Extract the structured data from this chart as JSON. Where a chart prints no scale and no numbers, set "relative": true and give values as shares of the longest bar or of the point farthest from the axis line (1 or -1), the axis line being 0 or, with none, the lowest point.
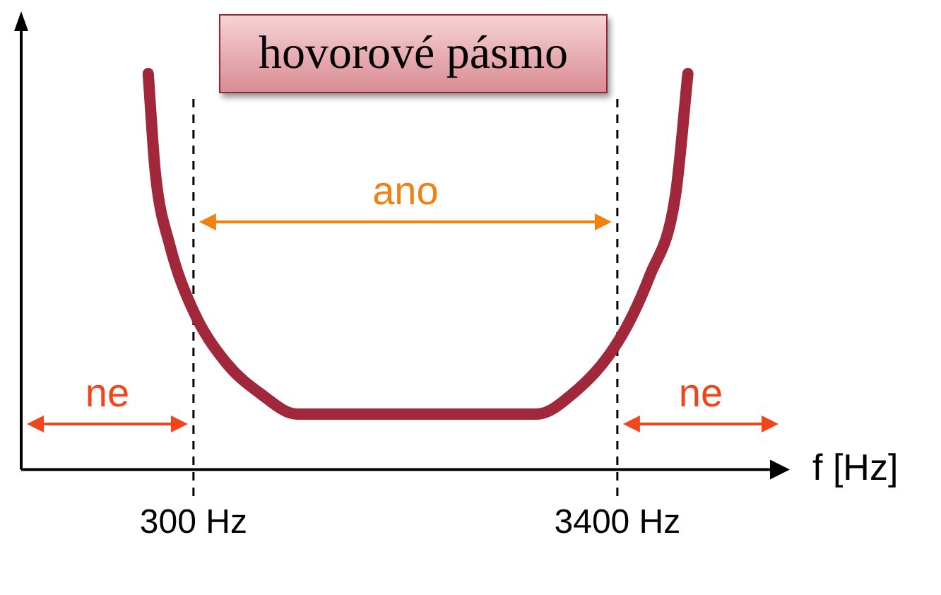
{
  "chart_data": {
    "type": "line",
    "title": "hovorové pásmo",
    "xlabel": "f [Hz]",
    "relative": true,
    "marker": "none",
    "line_style": "solid",
    "legend": false,
    "grid": false,
    "tick_labels": "x",
    "xlim": [
      -960,
      4620
    ],
    "xticks": [
      {
        "value": 300,
        "label": "300 Hz"
      },
      {
        "value": 3400,
        "label": "3400 Hz"
      }
    ],
    "x": [
      -31,
      21,
      124,
      300,
      538,
      796,
      1054,
      2811,
      3069,
      3400,
      3638,
      3824,
      3916
    ],
    "series": [
      {
        "color": "#a0283a",
        "values": [
          1.0,
          0.75,
          0.57,
          0.4,
          0.27,
          0.19,
          0.14,
          0.14,
          0.19,
          0.32,
          0.49,
          0.69,
          1.0
        ]
      }
    ],
    "ref_lines": [
      {
        "axis": "x",
        "value": 300,
        "color": "#000000",
        "line_style": "dashed"
      },
      {
        "axis": "x",
        "value": 3400,
        "color": "#000000",
        "line_style": "dashed"
      }
    ],
    "annotations": [
      "ne",
      "ano",
      "ne"
    ]
  }
}
